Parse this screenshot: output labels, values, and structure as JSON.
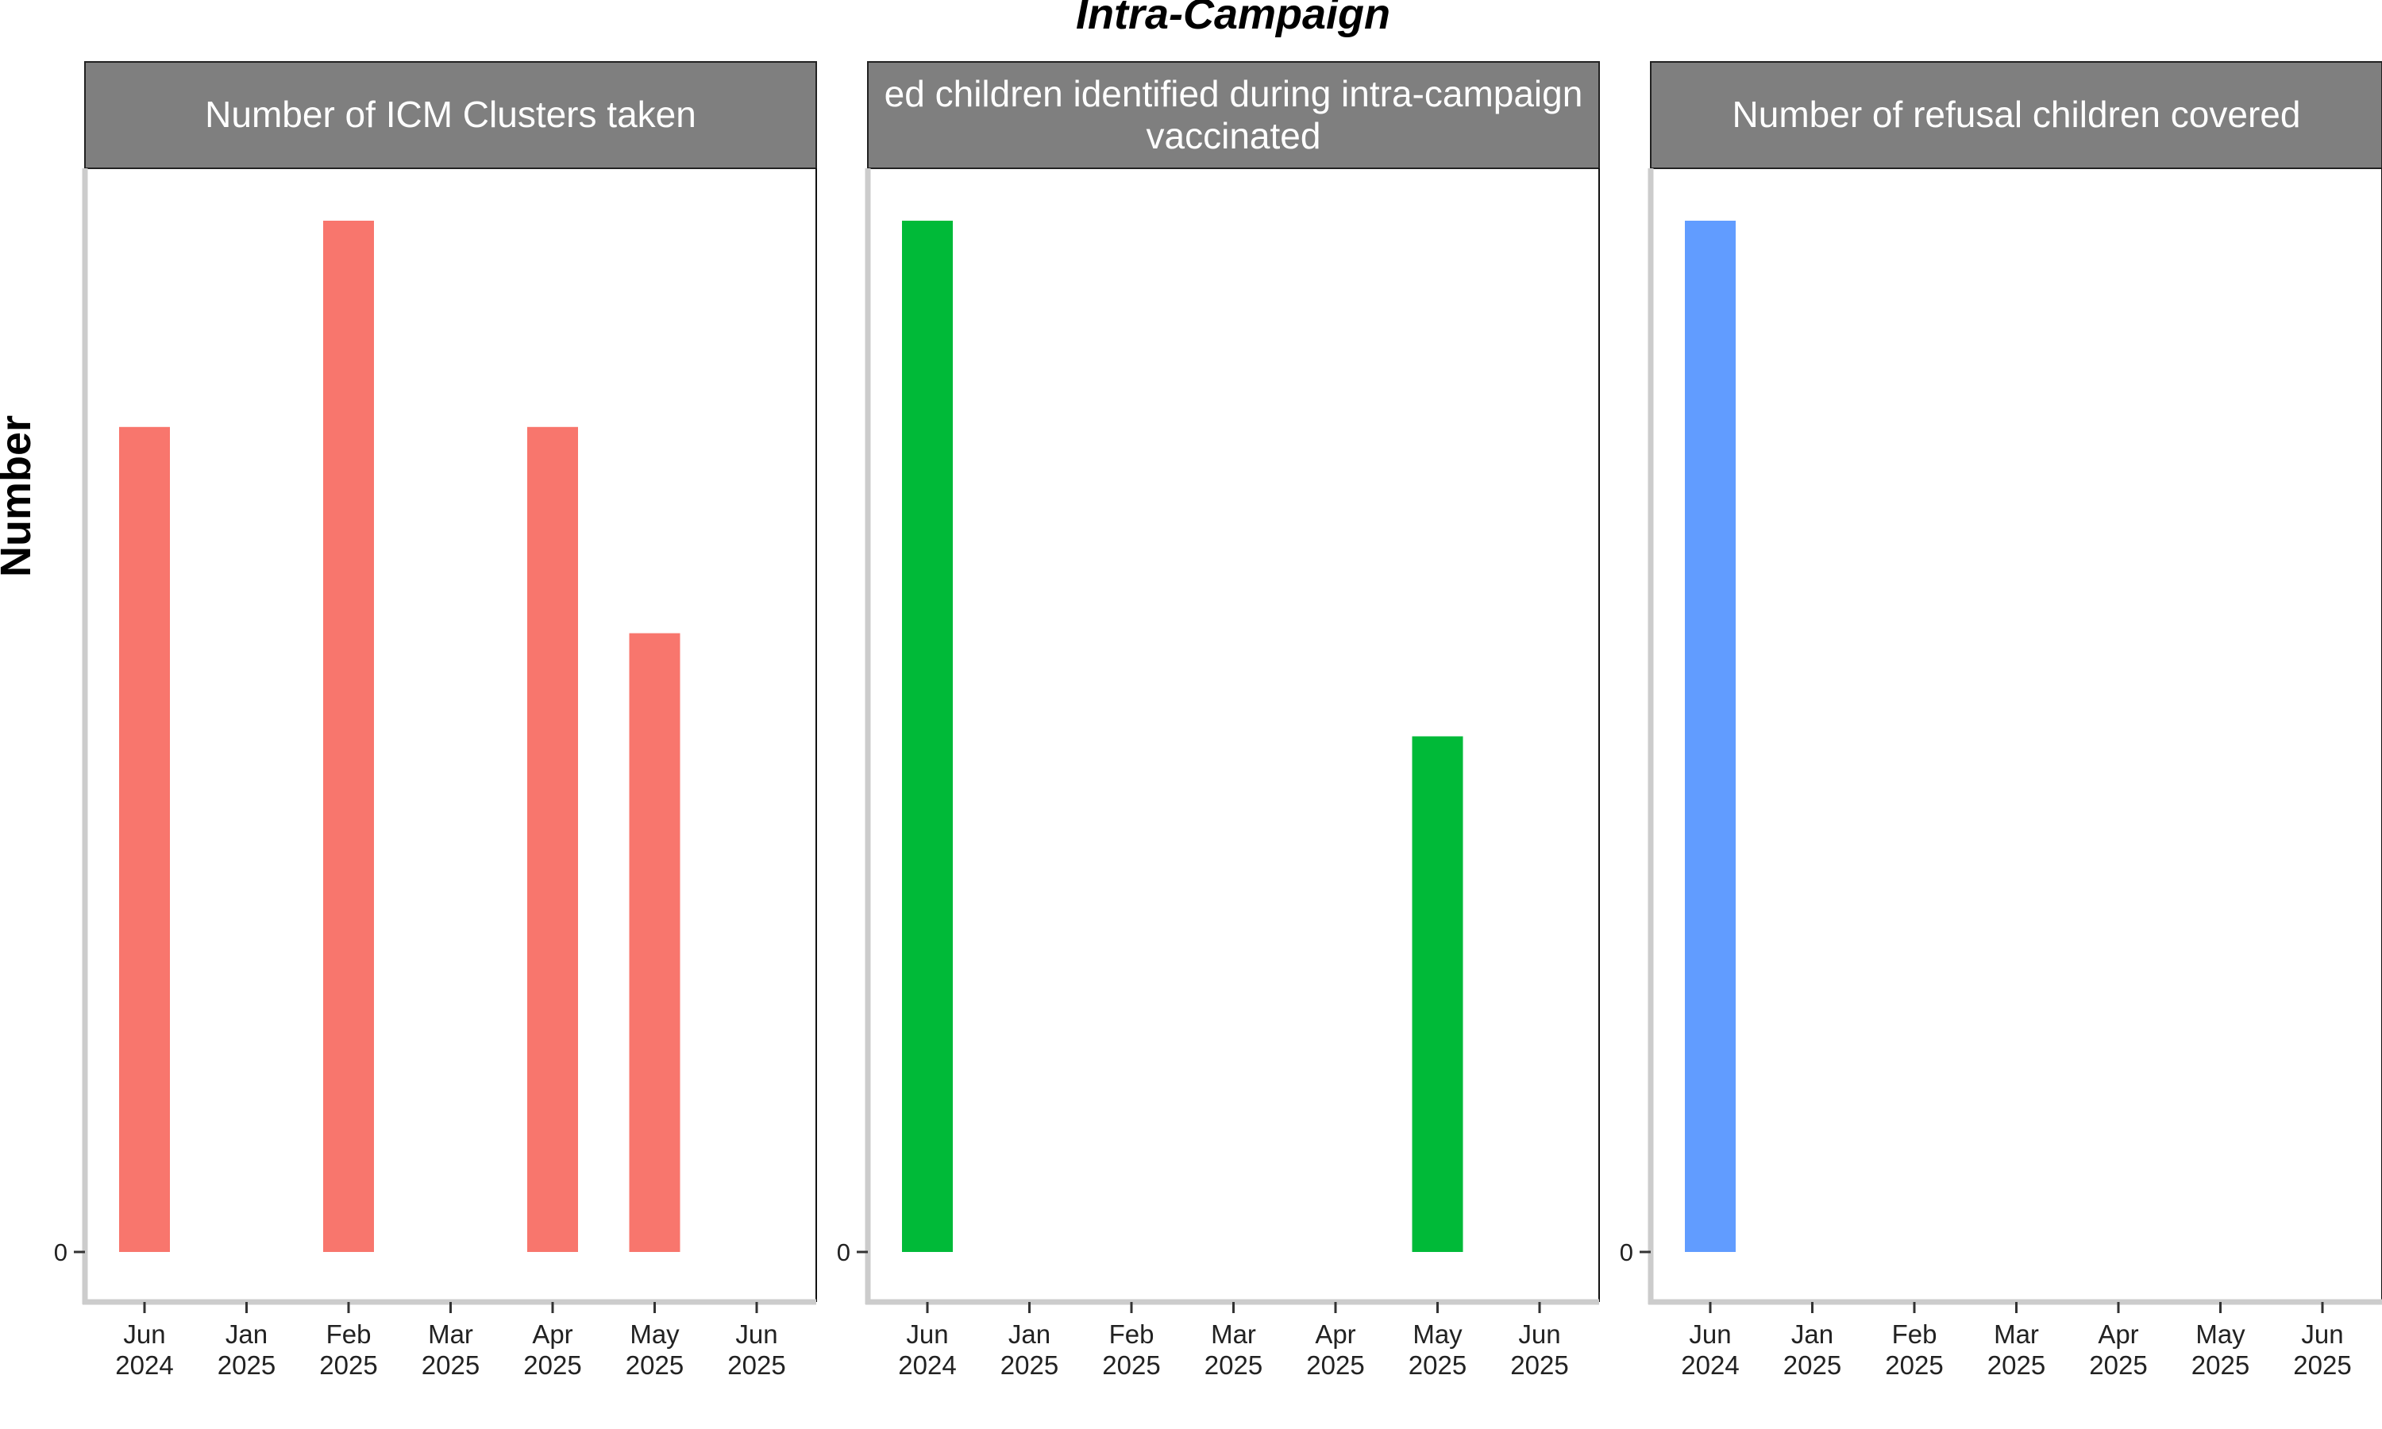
{
  "chart_data": {
    "type": "bar",
    "title": "Intra-Campaign",
    "ylabel": "Number",
    "y_ticks": [
      "0"
    ],
    "ylim": [
      0,
      5.2
    ],
    "x_tick_labels": [
      [
        "Jun",
        "2024"
      ],
      [
        "Jan",
        "2025"
      ],
      [
        "Feb",
        "2025"
      ],
      [
        "Mar",
        "2025"
      ],
      [
        "Apr",
        "2025"
      ],
      [
        "May",
        "2025"
      ],
      [
        "Jun",
        "2025"
      ]
    ],
    "panels": [
      {
        "title_lines": [
          "Number of ICM Clusters taken"
        ],
        "color": "#F8766D",
        "bars": [
          {
            "x": "Jun 2024",
            "value": 4
          },
          {
            "x": "Feb 2025",
            "value": 5
          },
          {
            "x": "Apr 2025",
            "value": 4
          },
          {
            "x": "May 2025",
            "value": 3
          }
        ]
      },
      {
        "title_lines": [
          "ed children identified during intra-campaign",
          "vaccinated"
        ],
        "color": "#00BA38",
        "bars": [
          {
            "x": "Jun 2024",
            "value": 5
          },
          {
            "x": "May 2025",
            "value": 2.5
          }
        ]
      },
      {
        "title_lines": [
          "Number of refusal children covered"
        ],
        "color": "#619CFF",
        "bars": [
          {
            "x": "Jun 2024",
            "value": 5
          }
        ]
      }
    ]
  }
}
